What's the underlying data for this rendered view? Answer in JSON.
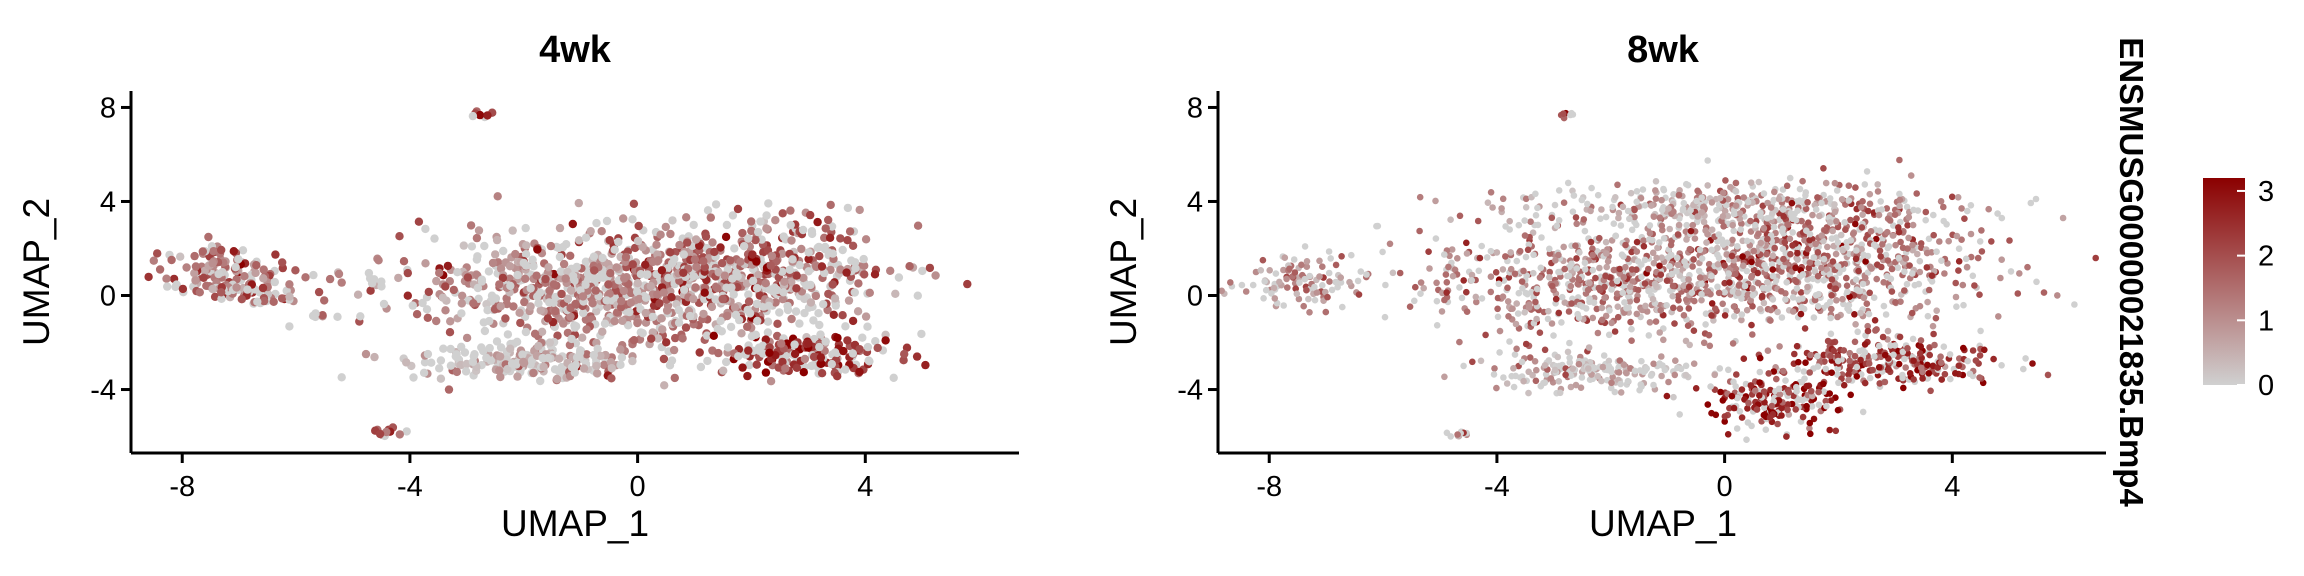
{
  "chart_data": [
    {
      "type": "scatter",
      "title": "4wk",
      "xlabel": "UMAP_1",
      "ylabel": "UMAP_2",
      "xlim": [
        -8.9,
        6.7
      ],
      "ylim": [
        -6.7,
        8.7
      ],
      "xticks": [
        -8,
        -4,
        0,
        4
      ],
      "yticks": [
        -4,
        0,
        4,
        8
      ],
      "grid": false,
      "clusters": [
        {
          "cx": -1.3,
          "cy": 0.3,
          "sx": 1.5,
          "sy": 1.3,
          "n": 520,
          "mean_expr": 1.2
        },
        {
          "cx": 1.4,
          "cy": 0.4,
          "sx": 1.4,
          "sy": 1.3,
          "n": 560,
          "mean_expr": 1.4
        },
        {
          "cx": 3.0,
          "cy": -2.5,
          "sx": 0.8,
          "sy": 0.5,
          "n": 170,
          "mean_expr": 2.4
        },
        {
          "cx": 2.6,
          "cy": 1.5,
          "sx": 0.8,
          "sy": 1.2,
          "n": 130,
          "mean_expr": 1.6
        },
        {
          "cx": -1.8,
          "cy": -2.8,
          "sx": 1.0,
          "sy": 0.4,
          "n": 190,
          "mean_expr": 0.5
        },
        {
          "cx": -7.3,
          "cy": 1.2,
          "sx": 0.5,
          "sy": 0.5,
          "n": 110,
          "mean_expr": 1.5
        },
        {
          "cx": -6.8,
          "cy": 0.2,
          "sx": 0.5,
          "sy": 0.3,
          "n": 60,
          "mean_expr": 1.3
        },
        {
          "cx": -5.6,
          "cy": -0.8,
          "sx": 0.1,
          "sy": 0.1,
          "n": 6,
          "mean_expr": 1.2
        },
        {
          "cx": -4.4,
          "cy": -5.8,
          "sx": 0.15,
          "sy": 0.08,
          "n": 12,
          "mean_expr": 2.0
        },
        {
          "cx": -2.7,
          "cy": 7.7,
          "sx": 0.12,
          "sy": 0.08,
          "n": 7,
          "mean_expr": 1.8
        },
        {
          "cx": -4.8,
          "cy": 0.6,
          "sx": 0.4,
          "sy": 0.3,
          "n": 15,
          "mean_expr": 0.8
        }
      ]
    },
    {
      "type": "scatter",
      "title": "8wk",
      "xlabel": "UMAP_1",
      "ylabel": "UMAP_2",
      "xlim": [
        -8.9,
        6.7
      ],
      "ylim": [
        -6.7,
        8.7
      ],
      "xticks": [
        -8,
        -4,
        0,
        4
      ],
      "yticks": [
        -4,
        0,
        4,
        8
      ],
      "grid": false,
      "clusters": [
        {
          "cx": -2.0,
          "cy": 0.5,
          "sx": 1.6,
          "sy": 1.2,
          "n": 650,
          "mean_expr": 1.3
        },
        {
          "cx": 1.5,
          "cy": 1.5,
          "sx": 1.6,
          "sy": 1.5,
          "n": 800,
          "mean_expr": 1.4
        },
        {
          "cx": 0.0,
          "cy": 3.8,
          "sx": 1.8,
          "sy": 0.5,
          "n": 300,
          "mean_expr": 0.8
        },
        {
          "cx": 3.0,
          "cy": -2.8,
          "sx": 1.0,
          "sy": 0.5,
          "n": 260,
          "mean_expr": 2.3
        },
        {
          "cx": 0.8,
          "cy": -4.5,
          "sx": 0.6,
          "sy": 0.6,
          "n": 190,
          "mean_expr": 2.6
        },
        {
          "cx": -2.4,
          "cy": -3.3,
          "sx": 0.9,
          "sy": 0.4,
          "n": 180,
          "mean_expr": 0.4
        },
        {
          "cx": -7.3,
          "cy": 0.6,
          "sx": 0.6,
          "sy": 0.6,
          "n": 110,
          "mean_expr": 1.0
        },
        {
          "cx": -4.6,
          "cy": -5.9,
          "sx": 0.12,
          "sy": 0.07,
          "n": 12,
          "mean_expr": 1.6
        },
        {
          "cx": -2.7,
          "cy": 7.7,
          "sx": 0.1,
          "sy": 0.08,
          "n": 7,
          "mean_expr": 1.8
        }
      ]
    }
  ],
  "legend": {
    "title": "ENSMUSG00000021835.Bmp4",
    "ticks": [
      0,
      1,
      2,
      3
    ],
    "min": 0,
    "max": 3.2,
    "color_low": "#d0d0d0",
    "color_high": "#8b0000"
  }
}
